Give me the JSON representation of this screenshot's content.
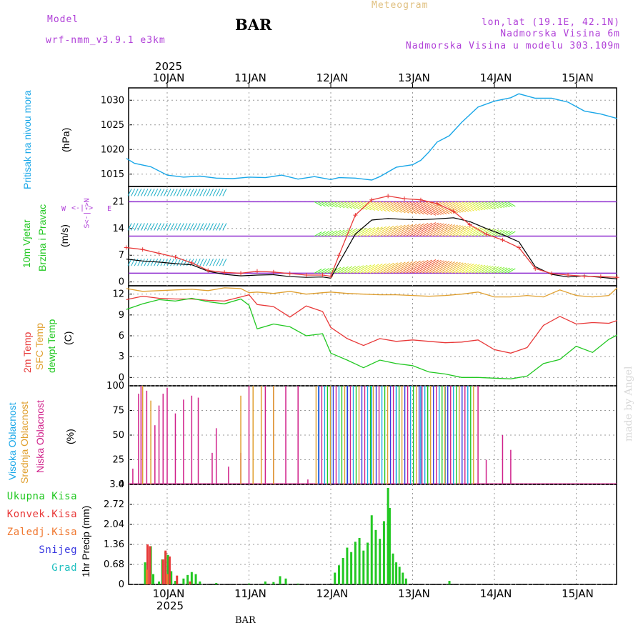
{
  "header": {
    "model_label": "Model",
    "model_name": "wrf-nmm_v3.9.1 e3km",
    "station": "BAR",
    "meteogram": "Meteogram",
    "coords": "lon,lat (19.1E, 42.1N)",
    "elevation": "Nadmorska Visina 6m",
    "model_elevation": "Nadmorska Visina u modelu 303.109m",
    "footer_station": "BAR",
    "watermark": "made by Angel"
  },
  "colors": {
    "purple": "#b040d8",
    "cyan": "#1aa7e8",
    "gold": "#e0a030",
    "red": "#e83838",
    "green": "#22c822",
    "magenta": "#d0208a",
    "orange": "#f07830",
    "blue": "#3838e0",
    "teal": "#20c0c0"
  },
  "dates": {
    "year": "2025",
    "top": [
      "10JAN",
      "11JAN",
      "12JAN",
      "13JAN",
      "14JAN",
      "15JAN"
    ],
    "bottom": [
      "10JAN",
      "11JAN",
      "12JAN",
      "13JAN",
      "14JAN",
      "15JAN"
    ]
  },
  "panels": {
    "pressure": {
      "label": "Pritisak na nivou mora",
      "unit": "(hPa)"
    },
    "wind": {
      "label1": "10m Vjetar",
      "label2": "Brzina i Pravac",
      "unit": "(m/s)",
      "compass_w": "W",
      "compass_e": "E",
      "compass_ns": "S<-|->N"
    },
    "temp": {
      "label1": "2m Temp",
      "label2": "SFC Temp",
      "label3": "dewpt Temp",
      "unit": "(C)"
    },
    "cloud": {
      "label1": "Visoka Oblacnost",
      "label2": "Srednja Oblacnost",
      "label3": "Niska Oblacnost",
      "unit": "(%)"
    },
    "precip": {
      "unit": "1hr Precip (mm)",
      "legend": [
        "Ukupna Kisa",
        "Konvek.Kisa",
        "Zaledj.Kisa",
        "Snijeg",
        "Grad"
      ]
    }
  },
  "chart_data": [
    {
      "type": "line",
      "title": "Pritisak na nivou mora",
      "ylabel": "(hPa)",
      "ylim": [
        1012.5,
        1032.5
      ],
      "yticks": [
        1015,
        1020,
        1025,
        1030
      ],
      "x_days": [
        -0.5,
        -0.4,
        -0.2,
        0.0,
        0.2,
        0.4,
        0.6,
        0.8,
        1.0,
        1.2,
        1.4,
        1.6,
        1.8,
        2.0,
        2.1,
        2.3,
        2.5,
        2.6,
        2.8,
        3.0,
        3.1,
        3.2,
        3.3,
        3.45,
        3.6,
        3.8,
        4.0,
        4.2,
        4.3,
        4.5,
        4.7,
        4.9,
        5.1,
        5.3,
        5.5
      ],
      "values": [
        1018.2,
        1017.2,
        1016.5,
        1014.8,
        1014.4,
        1014.6,
        1014.2,
        1014.1,
        1014.4,
        1014.3,
        1014.8,
        1014.0,
        1014.5,
        1013.9,
        1014.3,
        1014.2,
        1013.8,
        1014.5,
        1016.4,
        1016.9,
        1017.8,
        1019.5,
        1021.5,
        1022.8,
        1025.5,
        1028.6,
        1029.8,
        1030.5,
        1031.3,
        1030.4,
        1030.4,
        1029.6,
        1027.8,
        1027.2,
        1026.3
      ],
      "color": "#1aa7e8"
    },
    {
      "type": "line",
      "title": "10m Vjetar Brzina i Pravac",
      "ylabel": "(m/s)",
      "ylim": [
        -1,
        25
      ],
      "yticks": [
        0,
        7,
        14,
        21
      ],
      "x_days": [
        -0.5,
        -0.3,
        -0.1,
        0.1,
        0.3,
        0.5,
        0.7,
        0.9,
        1.1,
        1.3,
        1.5,
        1.7,
        1.9,
        2.0,
        2.1,
        2.3,
        2.5,
        2.7,
        2.9,
        3.1,
        3.3,
        3.5,
        3.7,
        3.9,
        4.1,
        4.3,
        4.5,
        4.7,
        4.9,
        5.1,
        5.3,
        5.5
      ],
      "series": [
        {
          "name": "speed",
          "color": "#000000",
          "values": [
            6.0,
            5.5,
            5.2,
            4.8,
            4.5,
            2.8,
            2.0,
            1.6,
            1.8,
            1.9,
            1.4,
            1.2,
            1.3,
            1.0,
            5.0,
            12.5,
            16.2,
            16.6,
            16.4,
            16.3,
            16.5,
            16.8,
            15.8,
            14.0,
            12.4,
            10.5,
            4.0,
            2.0,
            1.3,
            1.6,
            1.2,
            0.8
          ]
        },
        {
          "name": "gust",
          "color": "#e83838",
          "values": [
            9.0,
            8.5,
            7.5,
            6.5,
            5.0,
            3.0,
            2.5,
            2.3,
            2.8,
            2.6,
            2.2,
            1.8,
            1.8,
            1.5,
            7.0,
            17.5,
            21.5,
            22.5,
            21.8,
            21.5,
            20.5,
            18.5,
            15.0,
            12.5,
            11.0,
            9.0,
            3.5,
            2.2,
            1.8,
            1.5,
            1.4,
            1.2
          ]
        }
      ]
    },
    {
      "type": "line",
      "title": "2m Temp / SFC Temp / dewpt Temp",
      "ylabel": "(C)",
      "ylim": [
        -1.2,
        13.2
      ],
      "yticks": [
        0,
        3,
        6,
        9,
        12
      ],
      "x_days": [
        -0.5,
        -0.3,
        -0.1,
        0.1,
        0.3,
        0.5,
        0.7,
        0.9,
        1.0,
        1.1,
        1.3,
        1.5,
        1.7,
        1.9,
        2.0,
        2.2,
        2.4,
        2.6,
        2.8,
        3.0,
        3.2,
        3.4,
        3.6,
        3.8,
        4.0,
        4.2,
        4.4,
        4.6,
        4.8,
        5.0,
        5.2,
        5.4,
        5.5
      ],
      "series": [
        {
          "name": "2m Temp",
          "color": "#e83838",
          "values": [
            11.2,
            11.7,
            11.4,
            11.3,
            11.3,
            11.1,
            11.0,
            11.6,
            11.9,
            10.5,
            10.2,
            8.7,
            10.3,
            9.5,
            7.2,
            5.6,
            4.6,
            5.6,
            5.2,
            5.4,
            5.2,
            5.0,
            5.1,
            5.4,
            4.0,
            3.5,
            4.3,
            7.5,
            8.8,
            7.7,
            7.9,
            7.8,
            8.2
          ]
        },
        {
          "name": "SFC Temp",
          "color": "#e0a030",
          "values": [
            12.8,
            12.4,
            12.5,
            12.6,
            12.7,
            12.5,
            12.9,
            12.8,
            12.2,
            12.3,
            12.1,
            12.4,
            12.0,
            12.2,
            12.3,
            12.1,
            12.0,
            11.9,
            11.9,
            11.8,
            11.7,
            11.8,
            12.0,
            12.3,
            11.6,
            11.6,
            11.8,
            11.6,
            12.6,
            11.8,
            11.6,
            11.8,
            12.9
          ]
        },
        {
          "name": "dewpt Temp",
          "color": "#22c822",
          "values": [
            9.8,
            10.6,
            11.2,
            11.0,
            11.4,
            10.9,
            10.6,
            11.3,
            10.4,
            7.0,
            7.7,
            7.3,
            6.0,
            6.3,
            3.5,
            2.5,
            1.4,
            2.5,
            2.0,
            1.7,
            0.8,
            0.5,
            0.0,
            0.0,
            -0.1,
            -0.2,
            0.2,
            2.0,
            2.6,
            4.5,
            3.6,
            5.5,
            6.1
          ]
        }
      ]
    },
    {
      "type": "bar",
      "title": "Visoka / Srednja / Niska Oblacnost",
      "ylabel": "(%)",
      "ylim": [
        0,
        100
      ],
      "yticks": [
        0,
        25,
        50,
        75,
        100
      ],
      "series": [
        {
          "name": "Niska Oblacnost",
          "color": "#d0208a",
          "x_days": [
            -0.42,
            -0.35,
            -0.32,
            -0.25,
            -0.15,
            -0.1,
            -0.05,
            0.0,
            0.1,
            0.2,
            0.3,
            0.38,
            0.55,
            0.6,
            0.75,
            0.9,
            1.0,
            1.2,
            1.3,
            1.45,
            1.6,
            1.72,
            3.8,
            3.9,
            4.1,
            4.2
          ],
          "values": [
            16,
            92,
            100,
            95,
            60,
            80,
            92,
            98,
            72,
            86,
            90,
            88,
            32,
            57,
            18,
            32,
            100,
            100,
            100,
            100,
            100,
            5,
            100,
            25,
            50,
            35
          ]
        },
        {
          "name": "Srednja Oblacnost",
          "color": "#e0a030",
          "x_days": [
            -0.3,
            -0.2,
            0.9,
            1.05,
            1.15,
            1.3
          ],
          "values": [
            100,
            85,
            90,
            100,
            100,
            100
          ]
        },
        {
          "name": "Visoka Oblacnost",
          "color": "#1aa7e8",
          "x_days": [
            1.85,
            2.0,
            2.2,
            2.5,
            2.8,
            3.1,
            3.4
          ],
          "values": [
            100,
            100,
            100,
            100,
            100,
            100,
            100
          ]
        }
      ],
      "dense_range_days": [
        1.82,
        3.78
      ]
    },
    {
      "type": "bar",
      "title": "1hr Precip",
      "ylabel": "1hr Precip (mm)",
      "ylim": [
        0,
        3.4
      ],
      "yticks": [
        0,
        0.68,
        1.36,
        2.04,
        2.72,
        3.4
      ],
      "series": [
        {
          "name": "Ukupna Kisa",
          "color": "#22c822",
          "x_days": [
            -0.27,
            -0.24,
            -0.2,
            -0.17,
            -0.1,
            -0.06,
            -0.02,
            0.01,
            0.05,
            0.1,
            0.2,
            0.25,
            0.3,
            0.35,
            0.4,
            0.6,
            1.0,
            1.2,
            1.3,
            1.38,
            1.45,
            1.6,
            2.05,
            2.1,
            2.15,
            2.2,
            2.25,
            2.3,
            2.35,
            2.4,
            2.45,
            2.5,
            2.55,
            2.6,
            2.65,
            2.7,
            2.72,
            2.76,
            2.8,
            2.84,
            2.88,
            2.92,
            3.45
          ],
          "values": [
            0.75,
            1.36,
            1.3,
            0.35,
            0.1,
            0.85,
            1.1,
            1.0,
            0.45,
            0.12,
            0.2,
            0.32,
            0.42,
            0.35,
            0.1,
            0.05,
            0.03,
            0.1,
            0.08,
            0.28,
            0.2,
            0.03,
            0.4,
            0.65,
            0.9,
            1.25,
            1.1,
            1.45,
            1.58,
            1.15,
            1.42,
            2.35,
            1.85,
            1.55,
            2.15,
            3.28,
            2.6,
            1.05,
            0.75,
            0.6,
            0.4,
            0.2,
            0.12
          ]
        },
        {
          "name": "Konvek.Kisa",
          "color": "#e83838",
          "x_days": [
            -0.24,
            -0.21,
            -0.05,
            -0.02,
            0.03,
            0.12,
            0.28
          ],
          "values": [
            1.36,
            1.3,
            0.85,
            1.15,
            0.95,
            0.3,
            0.1
          ]
        },
        {
          "name": "Zaledj.Kisa",
          "color": "#f07830",
          "x_days": [
            -0.25,
            0.0
          ],
          "values": [
            0.5,
            0.35
          ]
        }
      ]
    }
  ]
}
